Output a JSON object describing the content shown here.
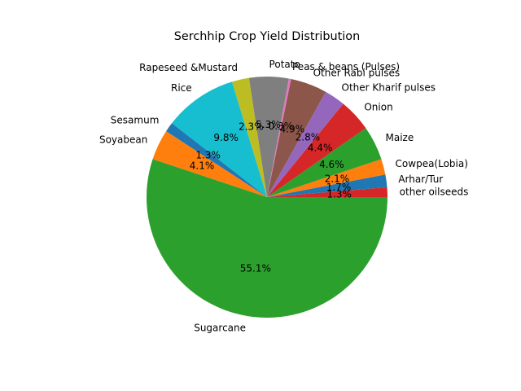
{
  "chart_data": {
    "type": "pie",
    "title": "Serchhip Crop Yield Distribution",
    "start_angle_deg": 0,
    "direction": "counterclockwise",
    "slices": [
      {
        "label": "other oilseeds",
        "value": 1.3,
        "pct_label": "1.3%",
        "color": "#d62728"
      },
      {
        "label": "Arhar/Tur",
        "value": 1.7,
        "pct_label": "1.7%",
        "color": "#1f77b4"
      },
      {
        "label": "Cowpea(Lobia)",
        "value": 2.1,
        "pct_label": "2.1%",
        "color": "#ff7f0e"
      },
      {
        "label": "Maize",
        "value": 4.6,
        "pct_label": "4.6%",
        "color": "#2ca02c"
      },
      {
        "label": "Onion",
        "value": 4.4,
        "pct_label": "4.4%",
        "color": "#d62728"
      },
      {
        "label": "Other Kharif pulses",
        "value": 2.8,
        "pct_label": "2.8%",
        "color": "#9467bd"
      },
      {
        "label": "Other Rabi pulses",
        "value": 4.9,
        "pct_label": "4.9%",
        "color": "#8c564b"
      },
      {
        "label": "Peas & beans (Pulses)",
        "value": 0.3,
        "pct_label": "0.3%",
        "color": "#e377c2"
      },
      {
        "label": "Potato",
        "value": 5.3,
        "pct_label": "5.3%",
        "color": "#7f7f7f"
      },
      {
        "label": "Rapeseed &Mustard",
        "value": 2.3,
        "pct_label": "2.3%",
        "color": "#bcbd22"
      },
      {
        "label": "Rice",
        "value": 9.8,
        "pct_label": "9.8%",
        "color": "#17becf"
      },
      {
        "label": "Sesamum",
        "value": 1.3,
        "pct_label": "1.3%",
        "color": "#1f77b4"
      },
      {
        "label": "Soyabean",
        "value": 4.1,
        "pct_label": "4.1%",
        "color": "#ff7f0e"
      },
      {
        "label": "Sugarcane",
        "value": 55.1,
        "pct_label": "55.1%",
        "color": "#2ca02c"
      }
    ]
  }
}
